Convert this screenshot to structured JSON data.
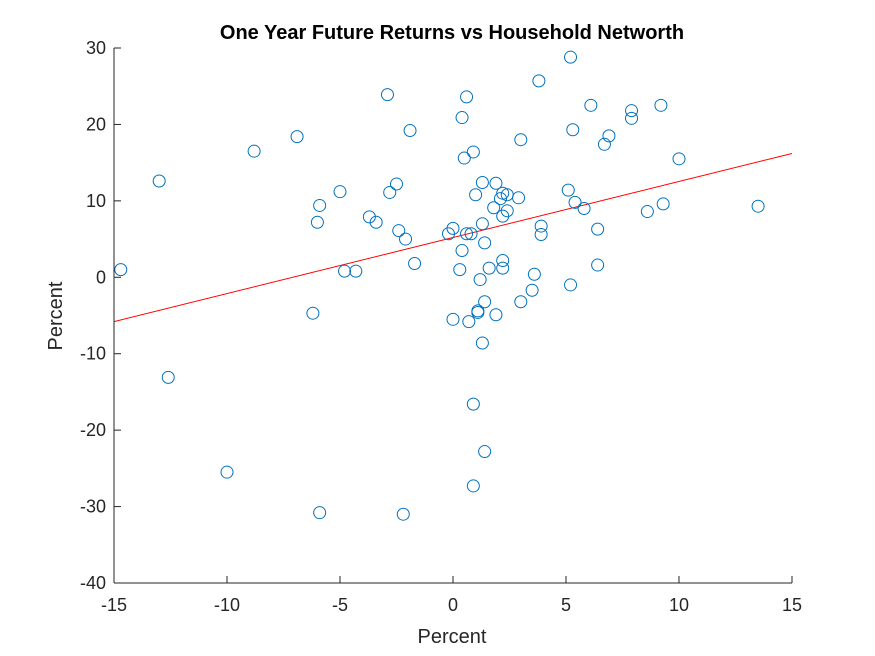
{
  "chart_data": {
    "type": "scatter",
    "title": "One Year Future Returns vs Household Networth",
    "xlabel": "Percent",
    "ylabel": "Percent",
    "xlim": [
      -15,
      15
    ],
    "ylim": [
      -40,
      30
    ],
    "xticks": [
      "-15",
      "-10",
      "-5",
      "0",
      "5",
      "10",
      "15"
    ],
    "yticks": [
      "30",
      "20",
      "10",
      "0",
      "-10",
      "-20",
      "-30",
      "-40"
    ],
    "grid": false,
    "legend": "none",
    "marker_color": "#0072BD",
    "fit_color": "#FF0000",
    "points": [
      [
        -14.7,
        1.0
      ],
      [
        -13.0,
        12.6
      ],
      [
        -12.6,
        -13.1
      ],
      [
        -10.0,
        -25.5
      ],
      [
        -8.8,
        16.5
      ],
      [
        -6.9,
        18.4
      ],
      [
        -6.2,
        -4.7
      ],
      [
        -6.0,
        7.2
      ],
      [
        -5.9,
        9.4
      ],
      [
        -5.9,
        -30.8
      ],
      [
        -5.0,
        11.2
      ],
      [
        -4.8,
        0.8
      ],
      [
        -4.3,
        0.8
      ],
      [
        -3.7,
        7.9
      ],
      [
        -3.4,
        7.2
      ],
      [
        -2.9,
        23.9
      ],
      [
        -2.8,
        11.1
      ],
      [
        -2.5,
        12.2
      ],
      [
        -2.4,
        6.1
      ],
      [
        -2.2,
        -31.0
      ],
      [
        -2.1,
        5.0
      ],
      [
        -1.9,
        19.2
      ],
      [
        -1.7,
        1.8
      ],
      [
        -0.2,
        5.7
      ],
      [
        0.0,
        6.4
      ],
      [
        0.0,
        -5.5
      ],
      [
        0.3,
        1.0
      ],
      [
        0.4,
        20.9
      ],
      [
        0.4,
        3.5
      ],
      [
        0.5,
        15.6
      ],
      [
        0.6,
        23.6
      ],
      [
        0.6,
        5.7
      ],
      [
        0.7,
        -5.8
      ],
      [
        0.8,
        5.7
      ],
      [
        0.9,
        16.4
      ],
      [
        0.9,
        -16.6
      ],
      [
        0.9,
        -27.3
      ],
      [
        1.0,
        10.8
      ],
      [
        1.1,
        -4.6
      ],
      [
        1.1,
        -4.4
      ],
      [
        1.2,
        -0.3
      ],
      [
        1.3,
        12.4
      ],
      [
        1.3,
        7.0
      ],
      [
        1.3,
        -8.6
      ],
      [
        1.4,
        4.5
      ],
      [
        1.4,
        -3.2
      ],
      [
        1.4,
        -22.8
      ],
      [
        1.6,
        1.2
      ],
      [
        1.8,
        9.1
      ],
      [
        1.9,
        12.3
      ],
      [
        1.9,
        -4.9
      ],
      [
        2.1,
        10.3
      ],
      [
        2.2,
        11.0
      ],
      [
        2.2,
        8.0
      ],
      [
        2.2,
        2.2
      ],
      [
        2.2,
        1.2
      ],
      [
        2.4,
        10.8
      ],
      [
        2.4,
        8.7
      ],
      [
        2.9,
        10.4
      ],
      [
        3.0,
        18.0
      ],
      [
        3.0,
        -3.2
      ],
      [
        3.5,
        -1.7
      ],
      [
        3.6,
        0.4
      ],
      [
        3.8,
        25.7
      ],
      [
        3.9,
        6.7
      ],
      [
        3.9,
        5.6
      ],
      [
        5.1,
        11.4
      ],
      [
        5.2,
        28.8
      ],
      [
        5.2,
        -1.0
      ],
      [
        5.3,
        19.3
      ],
      [
        5.4,
        9.8
      ],
      [
        5.8,
        9.0
      ],
      [
        6.1,
        22.5
      ],
      [
        6.4,
        6.3
      ],
      [
        6.4,
        1.6
      ],
      [
        6.7,
        17.4
      ],
      [
        6.9,
        18.5
      ],
      [
        7.9,
        21.8
      ],
      [
        7.9,
        20.8
      ],
      [
        8.6,
        8.6
      ],
      [
        9.2,
        22.5
      ],
      [
        9.3,
        9.6
      ],
      [
        10.0,
        15.5
      ],
      [
        13.5,
        9.3
      ]
    ],
    "fit_line": {
      "x": [
        -15,
        15
      ],
      "y": [
        -5.8,
        16.2
      ]
    }
  }
}
